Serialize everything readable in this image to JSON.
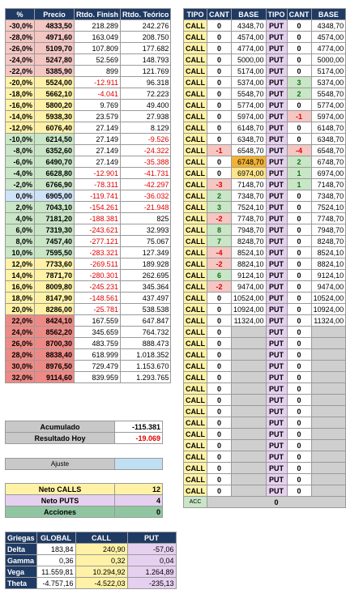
{
  "left": {
    "headers": [
      "%",
      "Precio",
      "Rtdo. Finish",
      "Rtdo. Teórico"
    ],
    "rows": [
      {
        "pct": "-30,0%",
        "precio": "4833,50",
        "finish": "218.289",
        "teorico": "242.276",
        "band": "neg"
      },
      {
        "pct": "-28,0%",
        "precio": "4971,60",
        "finish": "163.049",
        "teorico": "208.750",
        "band": "neg"
      },
      {
        "pct": "-26,0%",
        "precio": "5109,70",
        "finish": "107.809",
        "teorico": "177.682",
        "band": "neg"
      },
      {
        "pct": "-24,0%",
        "precio": "5247,80",
        "finish": "52.569",
        "teorico": "148.793",
        "band": "neg"
      },
      {
        "pct": "-22,0%",
        "precio": "5385,90",
        "finish": "899",
        "teorico": "121.769",
        "band": "neg"
      },
      {
        "pct": "-20,0%",
        "precio": "5524,00",
        "finish": "-12.911",
        "teorico": "96.318",
        "band": "yel"
      },
      {
        "pct": "-18,0%",
        "precio": "5662,10",
        "finish": "-4.041",
        "teorico": "72.223",
        "band": "yel"
      },
      {
        "pct": "-16,0%",
        "precio": "5800,20",
        "finish": "9.769",
        "teorico": "49.400",
        "band": "yel"
      },
      {
        "pct": "-14,0%",
        "precio": "5938,30",
        "finish": "23.579",
        "teorico": "27.938",
        "band": "yel"
      },
      {
        "pct": "-12,0%",
        "precio": "6076,40",
        "finish": "27.149",
        "teorico": "8.129",
        "band": "yel"
      },
      {
        "pct": "-10,0%",
        "precio": "6214,50",
        "finish": "27.149",
        "teorico": "-9.526",
        "band": "grn"
      },
      {
        "pct": "-8,0%",
        "precio": "6352,60",
        "finish": "27.149",
        "teorico": "-24.322",
        "band": "grn"
      },
      {
        "pct": "-6,0%",
        "precio": "6490,70",
        "finish": "27.149",
        "teorico": "-35.388",
        "band": "grn"
      },
      {
        "pct": "-4,0%",
        "precio": "6628,80",
        "finish": "-12.901",
        "teorico": "-41.731",
        "band": "grn"
      },
      {
        "pct": "-2,0%",
        "precio": "6766,90",
        "finish": "-78.311",
        "teorico": "-42.297",
        "band": "grn"
      },
      {
        "pct": "0,0%",
        "precio": "6905,00",
        "finish": "-119.741",
        "teorico": "-36.032",
        "band": "blu"
      },
      {
        "pct": "2,0%",
        "precio": "7043,10",
        "finish": "-154.261",
        "teorico": "-21.948",
        "band": "grn"
      },
      {
        "pct": "4,0%",
        "precio": "7181,20",
        "finish": "-188.381",
        "teorico": "825",
        "band": "grn"
      },
      {
        "pct": "6,0%",
        "precio": "7319,30",
        "finish": "-243.621",
        "teorico": "32.993",
        "band": "grn"
      },
      {
        "pct": "8,0%",
        "precio": "7457,40",
        "finish": "-277.121",
        "teorico": "75.067",
        "band": "grn"
      },
      {
        "pct": "10,0%",
        "precio": "7595,50",
        "finish": "-283.321",
        "teorico": "127.349",
        "band": "grn"
      },
      {
        "pct": "12,0%",
        "precio": "7733,60",
        "finish": "-269.511",
        "teorico": "189.928",
        "band": "yel"
      },
      {
        "pct": "14,0%",
        "precio": "7871,70",
        "finish": "-280.301",
        "teorico": "262.695",
        "band": "yel"
      },
      {
        "pct": "16,0%",
        "precio": "8009,80",
        "finish": "-245.231",
        "teorico": "345.364",
        "band": "yel"
      },
      {
        "pct": "18,0%",
        "precio": "8147,90",
        "finish": "-148.561",
        "teorico": "437.497",
        "band": "yel"
      },
      {
        "pct": "20,0%",
        "precio": "8286,00",
        "finish": "-25.781",
        "teorico": "538.538",
        "band": "yel"
      },
      {
        "pct": "22,0%",
        "precio": "8424,10",
        "finish": "167.559",
        "teorico": "647.847",
        "band": "red"
      },
      {
        "pct": "24,0%",
        "precio": "8562,20",
        "finish": "345.659",
        "teorico": "764.732",
        "band": "red"
      },
      {
        "pct": "26,0%",
        "precio": "8700,30",
        "finish": "483.759",
        "teorico": "888.473",
        "band": "red"
      },
      {
        "pct": "28,0%",
        "precio": "8838,40",
        "finish": "618.999",
        "teorico": "1.018.352",
        "band": "red"
      },
      {
        "pct": "30,0%",
        "precio": "8976,50",
        "finish": "729.479",
        "teorico": "1.153.670",
        "band": "red"
      },
      {
        "pct": "32,0%",
        "precio": "9114,60",
        "finish": "839.959",
        "teorico": "1.293.765",
        "band": "red"
      }
    ]
  },
  "right": {
    "headers": [
      "TIPO",
      "CANT",
      "BASE",
      "TIPO",
      "CANT",
      "BASE"
    ],
    "rows": [
      {
        "c_cant": "0",
        "c_base": "4348,70",
        "p_cant": "0",
        "p_base": "4348,70"
      },
      {
        "c_cant": "0",
        "c_base": "4574,00",
        "p_cant": "0",
        "p_base": "4574,00"
      },
      {
        "c_cant": "0",
        "c_base": "4774,00",
        "p_cant": "0",
        "p_base": "4774,00"
      },
      {
        "c_cant": "0",
        "c_base": "5000,00",
        "p_cant": "0",
        "p_base": "5000,00"
      },
      {
        "c_cant": "0",
        "c_base": "5174,00",
        "p_cant": "0",
        "p_base": "5174,00"
      },
      {
        "c_cant": "0",
        "c_base": "5374,00",
        "p_cant": "3",
        "p_base": "5374,00"
      },
      {
        "c_cant": "0",
        "c_base": "5548,70",
        "p_cant": "2",
        "p_base": "5548,70"
      },
      {
        "c_cant": "0",
        "c_base": "5774,00",
        "p_cant": "0",
        "p_base": "5774,00"
      },
      {
        "c_cant": "0",
        "c_base": "5974,00",
        "p_cant": "-1",
        "p_base": "5974,00"
      },
      {
        "c_cant": "0",
        "c_base": "6148,70",
        "p_cant": "0",
        "p_base": "6148,70"
      },
      {
        "c_cant": "0",
        "c_base": "6348,70",
        "p_cant": "0",
        "p_base": "6348,70"
      },
      {
        "c_cant": "-1",
        "c_base": "6548,70",
        "p_cant": "-4",
        "p_base": "6548,70"
      },
      {
        "c_cant": "0",
        "c_base": "6748,70",
        "p_cant": "2",
        "p_base": "6748,70",
        "c_hi": "hi"
      },
      {
        "c_cant": "0",
        "c_base": "6974,00",
        "p_cant": "1",
        "p_base": "6974,00",
        "c_hi": "yel"
      },
      {
        "c_cant": "-3",
        "c_base": "7148,70",
        "p_cant": "1",
        "p_base": "7148,70"
      },
      {
        "c_cant": "2",
        "c_base": "7348,70",
        "p_cant": "0",
        "p_base": "7348,70"
      },
      {
        "c_cant": "3",
        "c_base": "7524,10",
        "p_cant": "0",
        "p_base": "7524,10"
      },
      {
        "c_cant": "-2",
        "c_base": "7748,70",
        "p_cant": "0",
        "p_base": "7748,70"
      },
      {
        "c_cant": "8",
        "c_base": "7948,70",
        "p_cant": "0",
        "p_base": "7948,70"
      },
      {
        "c_cant": "7",
        "c_base": "8248,70",
        "p_cant": "0",
        "p_base": "8248,70"
      },
      {
        "c_cant": "-4",
        "c_base": "8524,10",
        "p_cant": "0",
        "p_base": "8524,10"
      },
      {
        "c_cant": "-2",
        "c_base": "8824,10",
        "p_cant": "0",
        "p_base": "8824,10"
      },
      {
        "c_cant": "6",
        "c_base": "9124,10",
        "p_cant": "0",
        "p_base": "9124,10"
      },
      {
        "c_cant": "-2",
        "c_base": "9474,00",
        "p_cant": "0",
        "p_base": "9474,00"
      },
      {
        "c_cant": "0",
        "c_base": "10524,00",
        "p_cant": "0",
        "p_base": "10524,00"
      },
      {
        "c_cant": "0",
        "c_base": "10924,00",
        "p_cant": "0",
        "p_base": "10924,00"
      },
      {
        "c_cant": "0",
        "c_base": "11324,00",
        "p_cant": "0",
        "p_base": "11324,00"
      },
      {
        "c_cant": "0",
        "c_base": "",
        "p_cant": "0",
        "p_base": ""
      },
      {
        "c_cant": "0",
        "c_base": "",
        "p_cant": "0",
        "p_base": ""
      },
      {
        "c_cant": "0",
        "c_base": "",
        "p_cant": "0",
        "p_base": ""
      },
      {
        "c_cant": "0",
        "c_base": "",
        "p_cant": "0",
        "p_base": ""
      },
      {
        "c_cant": "0",
        "c_base": "",
        "p_cant": "0",
        "p_base": ""
      },
      {
        "c_cant": "0",
        "c_base": "",
        "p_cant": "0",
        "p_base": ""
      },
      {
        "c_cant": "0",
        "c_base": "",
        "p_cant": "0",
        "p_base": ""
      },
      {
        "c_cant": "0",
        "c_base": "",
        "p_cant": "0",
        "p_base": ""
      },
      {
        "c_cant": "0",
        "c_base": "",
        "p_cant": "0",
        "p_base": ""
      },
      {
        "c_cant": "0",
        "c_base": "",
        "p_cant": "0",
        "p_base": ""
      },
      {
        "c_cant": "0",
        "c_base": "",
        "p_cant": "0",
        "p_base": ""
      },
      {
        "c_cant": "0",
        "c_base": "",
        "p_cant": "0",
        "p_base": ""
      },
      {
        "c_cant": "0",
        "c_base": "",
        "p_cant": "0",
        "p_base": ""
      },
      {
        "c_cant": "0",
        "c_base": "",
        "p_cant": "0",
        "p_base": ""
      },
      {
        "c_cant": "0",
        "c_base": "",
        "p_cant": "0",
        "p_base": ""
      }
    ],
    "call_label": "CALL",
    "put_label": "PUT",
    "acc_label": "ACC",
    "acc_value": "0"
  },
  "summary": {
    "acumulado_label": "Acumulado",
    "acumulado_value": "-115.381",
    "resultado_label": "Resultado Hoy",
    "resultado_value": "-19.069",
    "ajuste_label": "Ajuste",
    "ajuste_value": "",
    "neto_calls_label": "Neto CALLS",
    "neto_calls_value": "12",
    "neto_puts_label": "Neto PUTS",
    "neto_puts_value": "4",
    "acciones_label": "Acciones",
    "acciones_value": "0"
  },
  "griegas": {
    "headers": [
      "Griegas",
      "GLOBAL",
      "CALL",
      "PUT"
    ],
    "rows": [
      {
        "name": "Delta",
        "global": "183,84",
        "call": "240,90",
        "put": "-57,06"
      },
      {
        "name": "Gamma",
        "global": "0,36",
        "call": "0,32",
        "put": "0,04"
      },
      {
        "name": "Vega",
        "global": "11.559,81",
        "call": "10.294,92",
        "put": "1.264,89"
      },
      {
        "name": "Theta",
        "global": "-4.757,16",
        "call": "-4.522,03",
        "put": "-235,13"
      }
    ]
  },
  "colors": {
    "header_bg": "#1f3b63",
    "negative_text": "#e00000",
    "call_bg": "#fff2a6",
    "put_bg": "#e6d0ef"
  }
}
